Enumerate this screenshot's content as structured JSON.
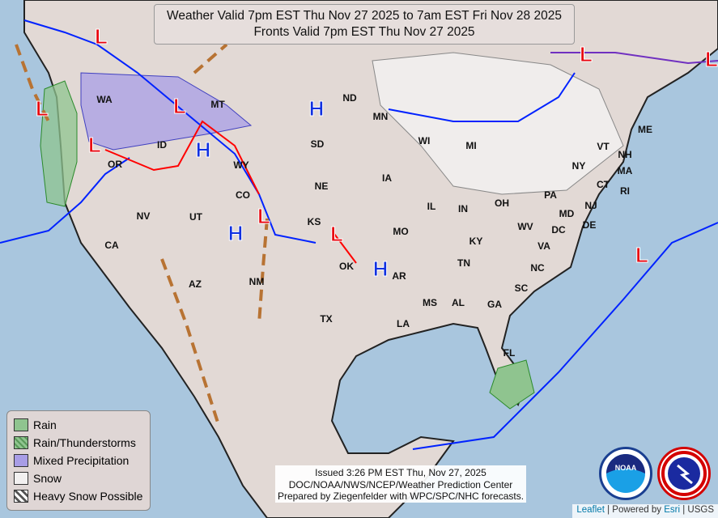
{
  "title": {
    "line1": "Weather Valid 7pm EST Thu Nov 27 2025 to 7am EST Fri Nov 28 2025",
    "line2": "Fronts Valid 7pm EST Thu Nov 27 2025"
  },
  "states": [
    "WA",
    "OR",
    "ID",
    "MT",
    "WY",
    "ND",
    "SD",
    "NE",
    "MN",
    "WI",
    "MI",
    "IA",
    "IL",
    "IN",
    "OH",
    "NY",
    "VT",
    "NH",
    "ME",
    "MA",
    "CT",
    "RI",
    "PA",
    "NJ",
    "MD",
    "DE",
    "DC",
    "WV",
    "VA",
    "KY",
    "TN",
    "NC",
    "SC",
    "GA",
    "AL",
    "MS",
    "LA",
    "AR",
    "MO",
    "KS",
    "OK",
    "TX",
    "NM",
    "CO",
    "UT",
    "AZ",
    "NV",
    "CA",
    "FL"
  ],
  "pressure_centers": [
    "L",
    "L",
    "L",
    "L",
    "L",
    "L",
    "L",
    "L",
    "L",
    "H",
    "H",
    "H",
    "H"
  ],
  "legend": {
    "items": [
      {
        "label": "Rain",
        "color": "#8fc48f"
      },
      {
        "label": "Rain/Thunderstorms",
        "color": "#8fc48f"
      },
      {
        "label": "Mixed Precipitation",
        "color": "#a89de6"
      },
      {
        "label": "Snow",
        "color": "#f2f0f0"
      },
      {
        "label": "Heavy Snow Possible",
        "color": "#999999"
      }
    ]
  },
  "issued": {
    "line1": "Issued  3:26 PM EST  Thu, Nov 27, 2025",
    "line2": "DOC/NOAA/NWS/NCEP/Weather Prediction Center",
    "line3": "Prepared by Ziegenfelder with WPC/SPC/NHC forecasts."
  },
  "logos": {
    "noaa": "NOAA",
    "nws": "NATIONAL WEATHER SERVICE"
  },
  "attribution": {
    "leaflet": "Leaflet",
    "sep1": " | Powered by ",
    "esri": "Esri",
    "sep2": " | USGS"
  },
  "colors": {
    "low": "#e8000b",
    "high": "#1030e0",
    "cold_front": "#0022ff",
    "warm_front": "#ff0000",
    "trough": "#b87333"
  }
}
